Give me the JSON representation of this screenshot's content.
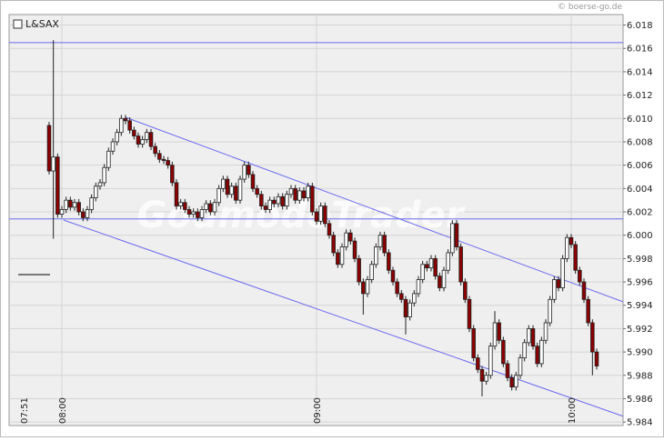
{
  "chart_data": {
    "type": "candlestick",
    "source": "© boerse-go.de",
    "watermark": "GodmodeTrader",
    "categories": [
      "07:51",
      null,
      null,
      null,
      null,
      null,
      null,
      null,
      null,
      "08:00",
      null,
      null,
      null,
      null,
      null,
      null,
      null,
      null,
      null,
      null,
      null,
      null,
      null,
      null,
      null,
      null,
      null,
      null,
      null,
      null,
      null,
      null,
      null,
      null,
      null,
      null,
      null,
      null,
      null,
      null,
      null,
      null,
      null,
      null,
      null,
      null,
      null,
      null,
      null,
      null,
      null,
      null,
      null,
      null,
      null,
      null,
      null,
      null,
      null,
      null,
      null,
      null,
      null,
      null,
      null,
      null,
      null,
      null,
      null,
      "09:00",
      null,
      null,
      null,
      null,
      null,
      null,
      null,
      null,
      null,
      null,
      null,
      null,
      null,
      null,
      null,
      null,
      null,
      null,
      null,
      null,
      null,
      null,
      null,
      null,
      null,
      null,
      null,
      null,
      null,
      null,
      null,
      null,
      null,
      null,
      null,
      null,
      null,
      null,
      null,
      null,
      null,
      null,
      null,
      null,
      null,
      null,
      null,
      null,
      null,
      null,
      null,
      null,
      null,
      null,
      null,
      null,
      null,
      null,
      null,
      "10:00",
      null,
      null,
      null,
      null,
      null,
      null
    ],
    "series": [
      {
        "name": "L&SAX",
        "up_color": "#ffffff",
        "down_color": "#8b0000",
        "open": [
          null,
          null,
          null,
          null,
          null,
          null,
          6.0094,
          6.0055,
          6.0067,
          6.0018,
          6.0022,
          6.003,
          6.0024,
          6.0028,
          6.002,
          6.0015,
          6.0022,
          6.0032,
          6.0042,
          6.0045,
          6.0058,
          6.0072,
          6.008,
          6.0088,
          6.01,
          6.0098,
          6.009,
          6.0085,
          6.0078,
          6.0082,
          6.0088,
          6.0076,
          6.007,
          6.0065,
          6.0064,
          6.006,
          6.0045,
          6.0025,
          6.0028,
          6.0022,
          6.0018,
          6.002,
          6.0015,
          6.0022,
          6.0027,
          6.002,
          6.0028,
          6.004,
          6.0048,
          6.0035,
          6.0042,
          6.003,
          6.0048,
          6.006,
          6.0052,
          6.004,
          6.0035,
          6.0025,
          6.0022,
          6.003,
          6.0027,
          6.0033,
          6.0025,
          6.0035,
          6.004,
          6.003,
          6.0038,
          6.0032,
          6.0042,
          6.002,
          6.0012,
          6.0025,
          6.001,
          6.0,
          5.9985,
          5.9975,
          5.999,
          6.0002,
          5.9995,
          5.998,
          5.996,
          5.995,
          5.9962,
          5.9975,
          5.999,
          6.0,
          5.9985,
          5.997,
          5.996,
          5.995,
          5.9945,
          5.993,
          5.9942,
          5.995,
          5.9962,
          5.9975,
          5.9972,
          5.998,
          5.9965,
          5.9955,
          5.997,
          5.9985,
          6.001,
          5.999,
          5.996,
          5.9945,
          5.992,
          5.9895,
          5.9885,
          5.9875,
          5.988,
          5.9905,
          5.9925,
          5.991,
          5.989,
          5.9878,
          5.987,
          5.988,
          5.9895,
          5.9908,
          5.992,
          5.9905,
          5.989,
          5.991,
          5.9925,
          5.9945,
          5.9962,
          5.9955,
          5.998,
          5.9998,
          5.9992,
          5.997,
          5.996,
          5.9945,
          5.9925,
          5.99
        ],
        "high": [
          null,
          null,
          null,
          null,
          null,
          null,
          6.0097,
          6.0167,
          6.007,
          6.0025,
          6.0033,
          6.0033,
          6.0031,
          6.0031,
          6.0023,
          6.0025,
          6.0035,
          6.0045,
          6.0048,
          6.0061,
          6.0075,
          6.0083,
          6.0091,
          6.0103,
          6.0103,
          6.0101,
          6.0093,
          6.0088,
          6.0085,
          6.0091,
          6.0091,
          6.0079,
          6.0073,
          6.0068,
          6.0067,
          6.0063,
          6.0048,
          6.0031,
          6.0031,
          6.0025,
          6.0023,
          6.0023,
          6.0025,
          6.003,
          6.003,
          6.0031,
          6.0043,
          6.0051,
          6.0051,
          6.0045,
          6.0045,
          6.0051,
          6.0063,
          6.0063,
          6.0055,
          6.0043,
          6.0038,
          6.0028,
          6.0033,
          6.0033,
          6.0036,
          6.0036,
          6.0038,
          6.0043,
          6.0043,
          6.0041,
          6.0041,
          6.0045,
          6.0045,
          6.0023,
          6.0028,
          6.0028,
          6.0013,
          6.0003,
          5.9988,
          5.9993,
          6.0005,
          6.0005,
          5.9998,
          5.9983,
          5.9963,
          5.9965,
          5.9978,
          5.9993,
          6.0003,
          6.0003,
          5.9988,
          5.9973,
          5.9963,
          5.9953,
          5.9948,
          5.9945,
          5.9953,
          5.9965,
          5.9978,
          5.9978,
          5.9983,
          5.9983,
          5.9968,
          5.9973,
          5.9988,
          6.0013,
          6.0013,
          5.9993,
          5.9963,
          5.9948,
          5.9923,
          5.9898,
          5.9888,
          5.9883,
          5.9908,
          5.9935,
          5.9928,
          5.9913,
          5.9893,
          5.9881,
          5.9883,
          5.9898,
          5.9911,
          5.9923,
          5.9923,
          5.9908,
          5.9913,
          5.9928,
          5.9948,
          5.9965,
          5.9965,
          5.9983,
          6.0001,
          6.0001,
          5.9995,
          5.9973,
          5.9963,
          5.9948,
          5.9928,
          5.9903
        ],
        "low": [
          null,
          null,
          null,
          null,
          null,
          null,
          6.0052,
          5.9997,
          6.0015,
          6.0015,
          6.0019,
          6.0021,
          6.0021,
          6.0017,
          6.0012,
          6.0012,
          6.0019,
          6.0029,
          6.0039,
          6.0042,
          6.0055,
          6.0069,
          6.0077,
          6.0085,
          6.0095,
          6.0087,
          6.0082,
          6.0075,
          6.0075,
          6.0079,
          6.0073,
          6.0067,
          6.0062,
          6.0061,
          6.0057,
          6.0042,
          6.0022,
          6.0022,
          6.0019,
          6.0015,
          6.0015,
          6.0012,
          6.0012,
          6.0019,
          6.0017,
          6.0017,
          6.0025,
          6.0037,
          6.0032,
          6.0032,
          6.0027,
          6.0027,
          6.0045,
          6.0049,
          6.0037,
          6.0032,
          6.0022,
          6.0019,
          6.0019,
          6.0024,
          6.0024,
          6.0022,
          6.0022,
          6.0032,
          6.0027,
          6.0027,
          6.0029,
          6.0029,
          6.0017,
          6.0009,
          6.0009,
          6.0007,
          5.9997,
          5.9982,
          5.9972,
          5.9972,
          5.9987,
          5.9992,
          5.9977,
          5.9957,
          5.9932,
          5.9947,
          5.9959,
          5.9972,
          5.9987,
          5.9982,
          5.9967,
          5.9957,
          5.9947,
          5.9942,
          5.9915,
          5.9927,
          5.9939,
          5.9947,
          5.9959,
          5.9969,
          5.9969,
          5.9962,
          5.9952,
          5.9952,
          5.9967,
          5.9982,
          5.9987,
          5.9957,
          5.9942,
          5.9917,
          5.9892,
          5.9882,
          5.9862,
          5.9872,
          5.9877,
          5.9902,
          5.9907,
          5.9887,
          5.9875,
          5.9867,
          5.9867,
          5.9877,
          5.9892,
          5.9905,
          5.9902,
          5.9887,
          5.9887,
          5.9907,
          5.9922,
          5.9942,
          5.9952,
          5.9952,
          5.9977,
          5.9989,
          5.9967,
          5.9957,
          5.9942,
          5.9922,
          5.988,
          5.9885
        ],
        "close": [
          null,
          null,
          null,
          null,
          null,
          null,
          6.0055,
          6.0067,
          6.0018,
          6.0022,
          6.003,
          6.0024,
          6.0028,
          6.002,
          6.0015,
          6.0022,
          6.0032,
          6.0042,
          6.0045,
          6.0058,
          6.0072,
          6.008,
          6.0088,
          6.01,
          6.0098,
          6.009,
          6.0085,
          6.0078,
          6.0082,
          6.0088,
          6.0076,
          6.007,
          6.0065,
          6.0064,
          6.006,
          6.0045,
          6.0025,
          6.0028,
          6.0022,
          6.0018,
          6.002,
          6.0015,
          6.0022,
          6.0027,
          6.002,
          6.0028,
          6.004,
          6.0048,
          6.0035,
          6.0042,
          6.003,
          6.0048,
          6.006,
          6.0052,
          6.004,
          6.0035,
          6.0025,
          6.0022,
          6.003,
          6.0027,
          6.0033,
          6.0025,
          6.0035,
          6.004,
          6.003,
          6.0038,
          6.0032,
          6.0042,
          6.002,
          6.0012,
          6.0025,
          6.001,
          6.0,
          5.9985,
          5.9975,
          5.999,
          6.0002,
          5.9995,
          5.998,
          5.996,
          5.995,
          5.9962,
          5.9975,
          5.999,
          6.0,
          5.9985,
          5.997,
          5.996,
          5.995,
          5.9945,
          5.993,
          5.9942,
          5.995,
          5.9962,
          5.9975,
          5.9972,
          5.998,
          5.9965,
          5.9955,
          5.997,
          5.9985,
          6.001,
          5.999,
          5.996,
          5.9945,
          5.992,
          5.9895,
          5.9885,
          5.9875,
          5.988,
          5.9905,
          5.9925,
          5.991,
          5.989,
          5.9878,
          5.987,
          5.988,
          5.9895,
          5.9908,
          5.992,
          5.9905,
          5.989,
          5.991,
          5.9925,
          5.9945,
          5.9962,
          5.9955,
          5.998,
          5.9998,
          5.9992,
          5.997,
          5.996,
          5.9945,
          5.9925,
          5.99,
          5.9888
        ]
      }
    ],
    "hlines": [
      6.0165,
      6.0014
    ],
    "trendlines": [
      {
        "x": [
          24,
          141.2
        ],
        "values": [
          6.0101,
          5.9943
        ]
      },
      {
        "x": [
          9.4,
          141.2
        ],
        "values": [
          6.0013,
          5.9845
        ]
      }
    ],
    "line_color": "#6a6af0",
    "ylim": [
      5.9837,
      6.0189
    ],
    "yticks": [
      5.984,
      5.986,
      5.988,
      {
        "value": 5.99,
        "label": "5.990"
      },
      5.992,
      5.994,
      5.996,
      5.998,
      {
        "value": 6.0,
        "label": "6.000"
      },
      6.002,
      6.004,
      6.006,
      6.008,
      {
        "value": 6.01,
        "label": "6.010"
      },
      6.012,
      6.014,
      6.016,
      6.018
    ],
    "grid": true
  }
}
